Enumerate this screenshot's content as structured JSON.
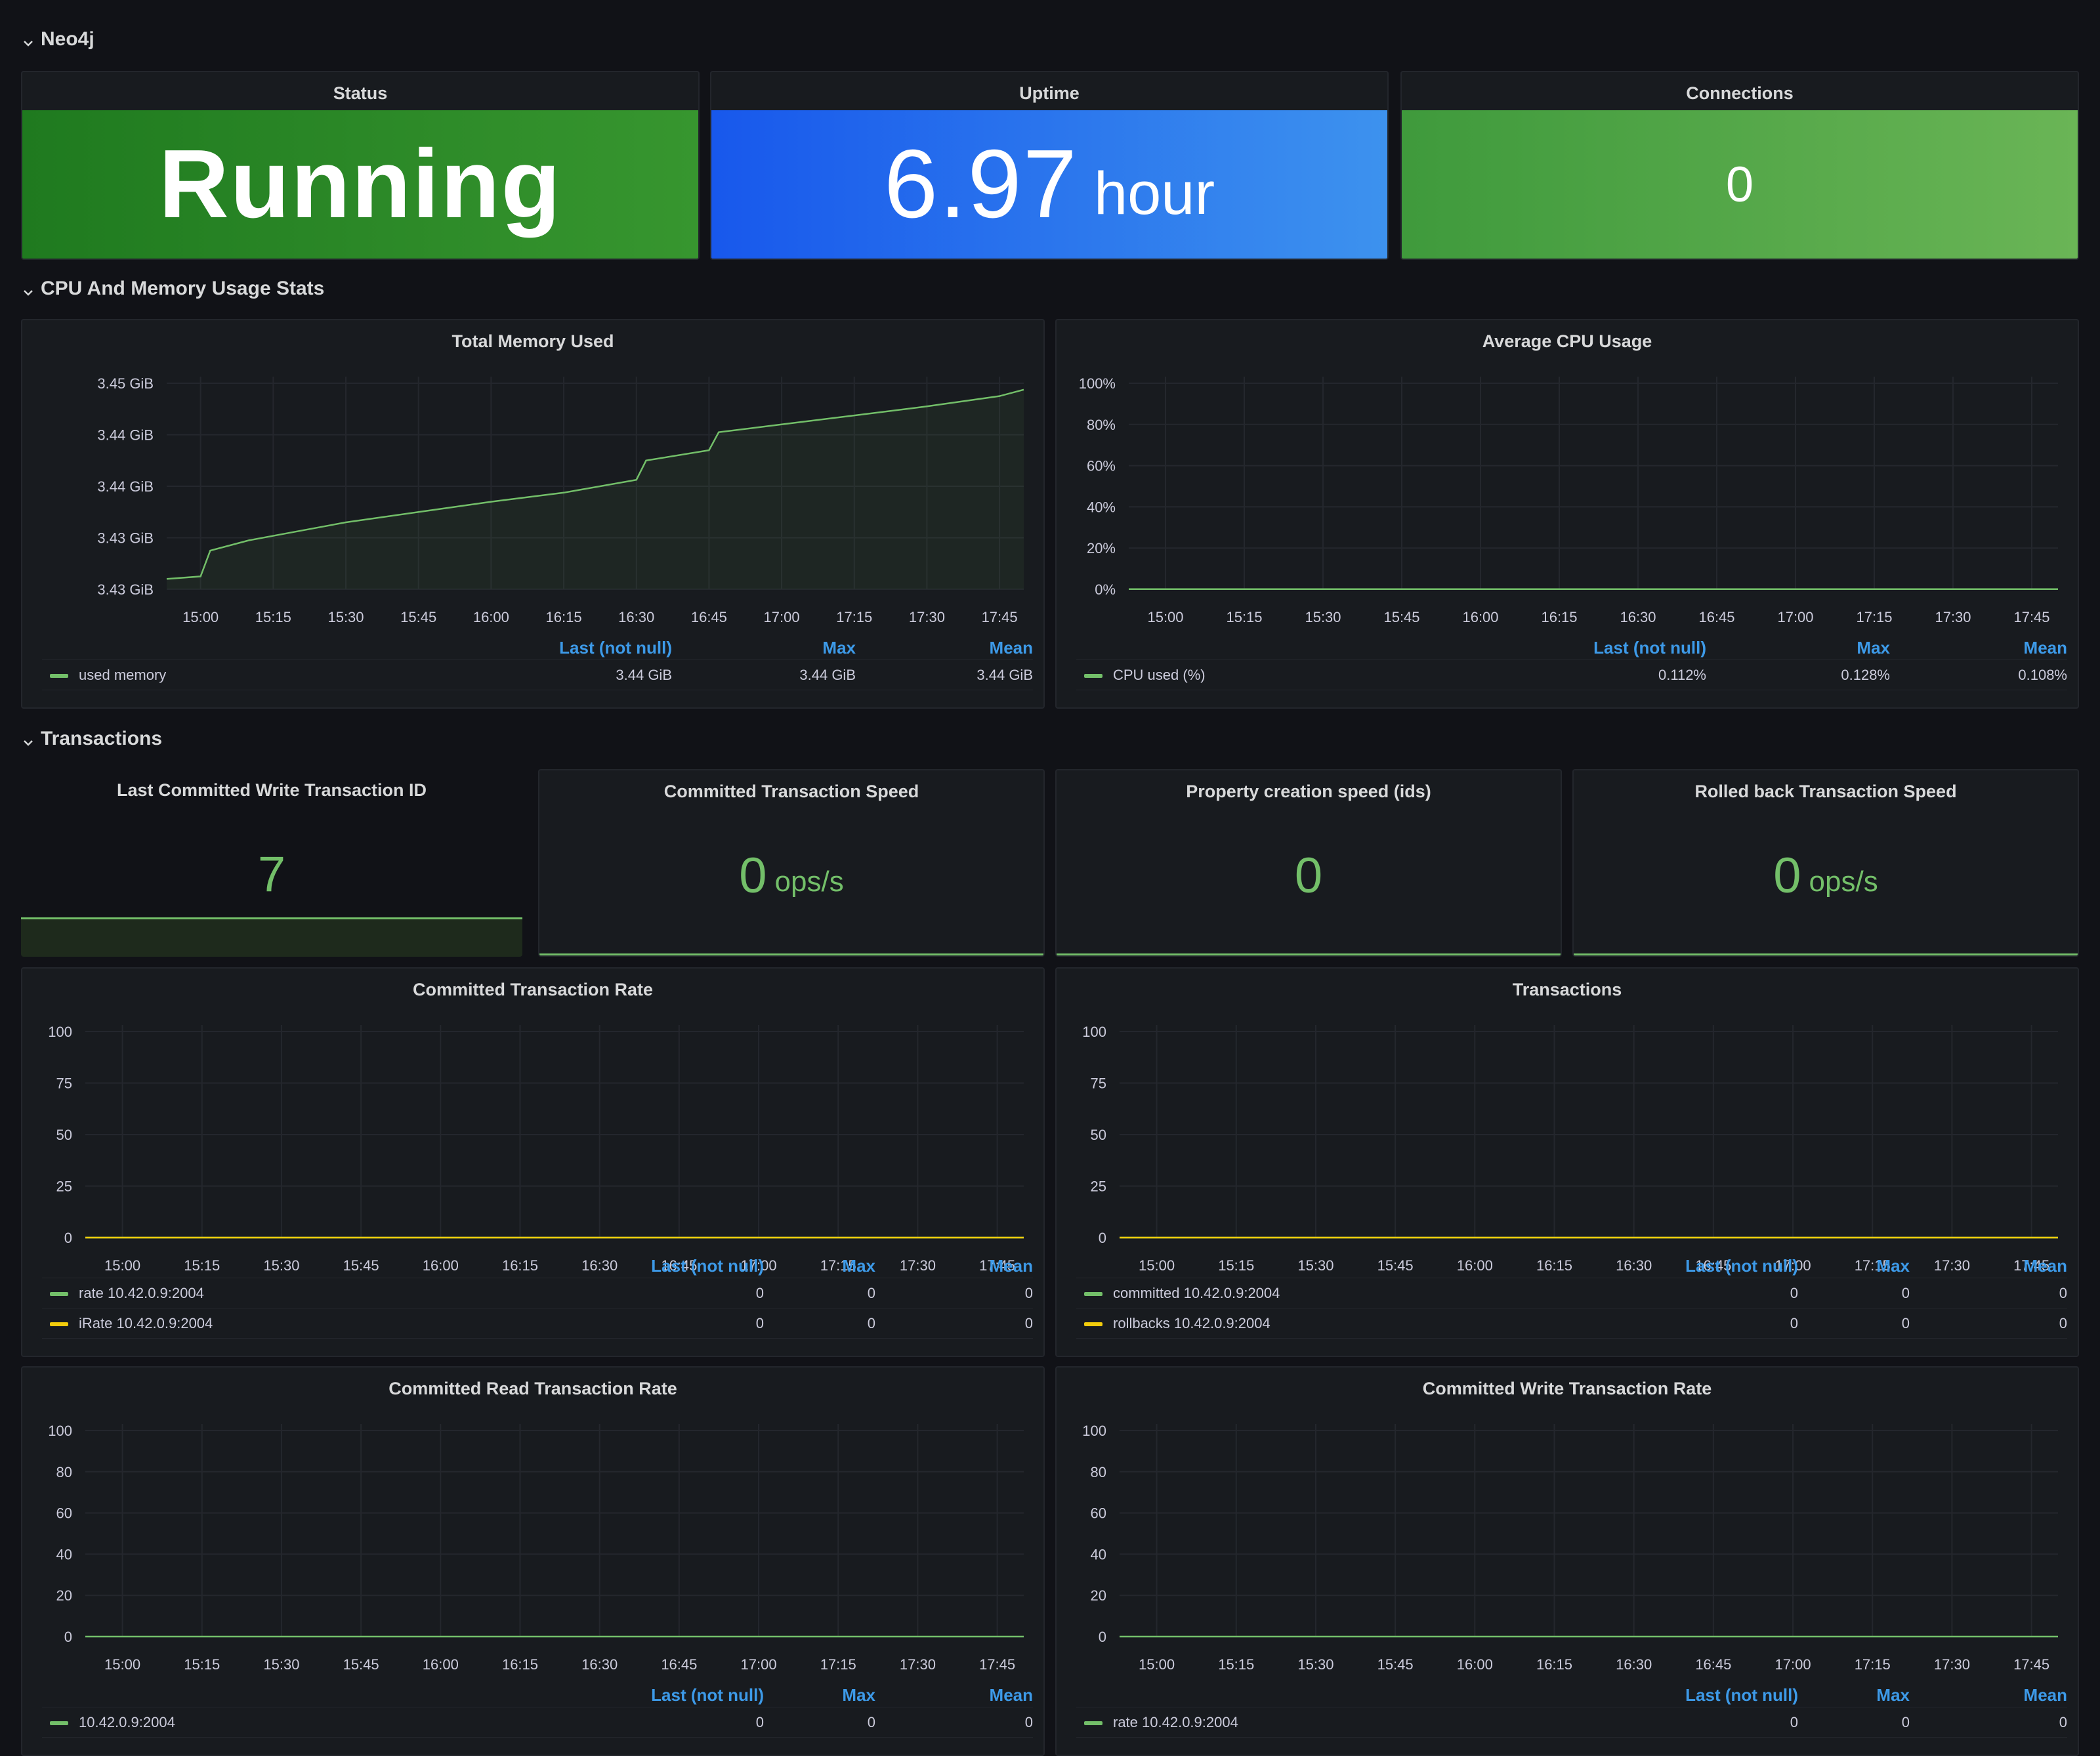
{
  "rows": {
    "neo4j": "Neo4j",
    "cpu_memory": "CPU And Memory Usage Stats",
    "transactions": "Transactions"
  },
  "status_panel": {
    "title": "Status",
    "value": "Running",
    "color": "#2f8d2c"
  },
  "uptime_panel": {
    "title": "Uptime",
    "value": "6.97",
    "unit": "hour",
    "color": "#2b79ea"
  },
  "connections_panel": {
    "title": "Connections",
    "value": "0",
    "color": "#56a64b"
  },
  "last_write_tx": {
    "title": "Last Committed Write Transaction ID",
    "value": "7",
    "fraction": 0.2
  },
  "committed_speed": {
    "title": "Committed Transaction Speed",
    "value": "0",
    "unit": "ops/s"
  },
  "property_speed": {
    "title": "Property creation speed (ids)",
    "value": "0"
  },
  "rolledback_speed": {
    "title": "Rolled back Transaction Speed",
    "value": "0",
    "unit": "ops/s"
  },
  "legend_headers": {
    "last": "Last (not null)",
    "max": "Max",
    "mean": "Mean"
  },
  "x_ticks": [
    "15:00",
    "15:15",
    "15:30",
    "15:45",
    "16:00",
    "16:15",
    "16:30",
    "16:45",
    "17:00",
    "17:15",
    "17:30",
    "17:45"
  ],
  "colors": {
    "green": "#73bf69",
    "yellow": "#f2cc0c",
    "blue": "#3d9ae8"
  },
  "chart_data": [
    {
      "id": "memory",
      "type": "line",
      "title": "Total Memory Used",
      "y_ticks": [
        "3.45 GiB",
        "3.44 GiB",
        "3.44 GiB",
        "3.43 GiB",
        "3.43 GiB"
      ],
      "x": [
        "14:53",
        "15:00",
        "15:02",
        "15:10",
        "15:20",
        "15:30",
        "15:45",
        "16:00",
        "16:15",
        "16:30",
        "16:32",
        "16:45",
        "16:47",
        "17:00",
        "17:15",
        "17:30",
        "17:45",
        "17:50"
      ],
      "series": [
        {
          "name": "used memory",
          "color": "#73bf69",
          "values": [
            3.4308,
            3.431,
            3.433,
            3.4338,
            3.4345,
            3.4352,
            3.436,
            3.4368,
            3.4375,
            3.4385,
            3.44,
            3.4408,
            3.4422,
            3.4428,
            3.4435,
            3.4442,
            3.445,
            3.4455
          ],
          "last": "3.44 GiB",
          "max": "3.44 GiB",
          "mean": "3.44 GiB"
        }
      ],
      "ylim": [
        3.43,
        3.446
      ]
    },
    {
      "id": "cpu",
      "type": "line",
      "title": "Average CPU Usage",
      "y_ticks": [
        "100%",
        "80%",
        "60%",
        "40%",
        "20%",
        "0%"
      ],
      "series": [
        {
          "name": "CPU used (%)",
          "color": "#73bf69",
          "values": [
            0.1,
            0.1,
            0.1,
            0.1,
            0.1,
            0.1,
            0.1,
            0.1,
            0.1,
            0.1,
            0.1,
            0.1
          ],
          "last": "0.112%",
          "max": "0.128%",
          "mean": "0.108%"
        }
      ],
      "ylim": [
        0,
        100
      ]
    },
    {
      "id": "committed_rate",
      "type": "line",
      "title": "Committed Transaction Rate",
      "y_ticks": [
        "100",
        "75",
        "50",
        "25",
        "0"
      ],
      "series": [
        {
          "name": "rate 10.42.0.9:2004",
          "color": "#73bf69",
          "values": [
            0,
            0,
            0,
            0,
            0,
            0,
            0,
            0,
            0,
            0,
            0,
            0
          ],
          "last": "0",
          "max": "0",
          "mean": "0"
        },
        {
          "name": "iRate 10.42.0.9:2004",
          "color": "#f2cc0c",
          "values": [
            0,
            0,
            0,
            0,
            0,
            0,
            0,
            0,
            0,
            0,
            0,
            0
          ],
          "last": "0",
          "max": "0",
          "mean": "0"
        }
      ],
      "ylim": [
        0,
        100
      ]
    },
    {
      "id": "transactions",
      "type": "line",
      "title": "Transactions",
      "y_ticks": [
        "100",
        "75",
        "50",
        "25",
        "0"
      ],
      "series": [
        {
          "name": "committed 10.42.0.9:2004",
          "color": "#73bf69",
          "values": [
            0,
            0,
            0,
            0,
            0,
            0,
            0,
            0,
            0,
            0,
            0,
            0
          ],
          "last": "0",
          "max": "0",
          "mean": "0"
        },
        {
          "name": "rollbacks 10.42.0.9:2004",
          "color": "#f2cc0c",
          "values": [
            0,
            0,
            0,
            0,
            0,
            0,
            0,
            0,
            0,
            0,
            0,
            0
          ],
          "last": "0",
          "max": "0",
          "mean": "0"
        }
      ],
      "ylim": [
        0,
        100
      ]
    },
    {
      "id": "read_rate",
      "type": "line",
      "title": "Committed Read Transaction Rate",
      "y_ticks": [
        "100",
        "80",
        "60",
        "40",
        "20",
        "0"
      ],
      "series": [
        {
          "name": "10.42.0.9:2004",
          "color": "#73bf69",
          "values": [
            0,
            0,
            0,
            0,
            0,
            0,
            0,
            0,
            0,
            0,
            0,
            0
          ],
          "last": "0",
          "max": "0",
          "mean": "0"
        }
      ],
      "ylim": [
        0,
        100
      ]
    },
    {
      "id": "write_rate",
      "type": "line",
      "title": "Committed Write Transaction Rate",
      "y_ticks": [
        "100",
        "80",
        "60",
        "40",
        "20",
        "0"
      ],
      "series": [
        {
          "name": "rate 10.42.0.9:2004",
          "color": "#73bf69",
          "values": [
            0,
            0,
            0,
            0,
            0,
            0,
            0,
            0,
            0,
            0,
            0,
            0
          ],
          "last": "0",
          "max": "0",
          "mean": "0"
        }
      ],
      "ylim": [
        0,
        100
      ]
    }
  ]
}
